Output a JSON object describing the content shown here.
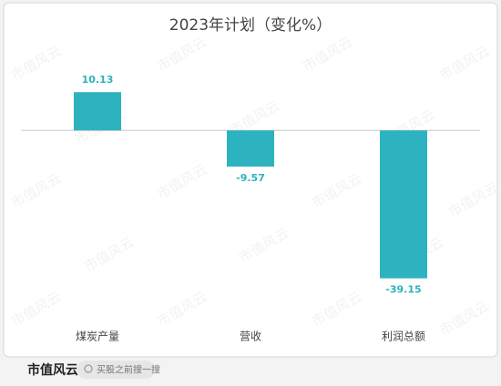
{
  "chart_data": {
    "type": "bar",
    "title": "2023年计划（变化%）",
    "categories": [
      "煤炭产量",
      "营收",
      "利润总额"
    ],
    "values": [
      10.13,
      -9.57,
      -39.15
    ],
    "color": "#2db3bf",
    "ylim": [
      -45,
      15
    ],
    "grid": false
  },
  "watermark": "市值风云",
  "footer": {
    "brand": "市值风云",
    "search": "买股之前搜一搜"
  }
}
